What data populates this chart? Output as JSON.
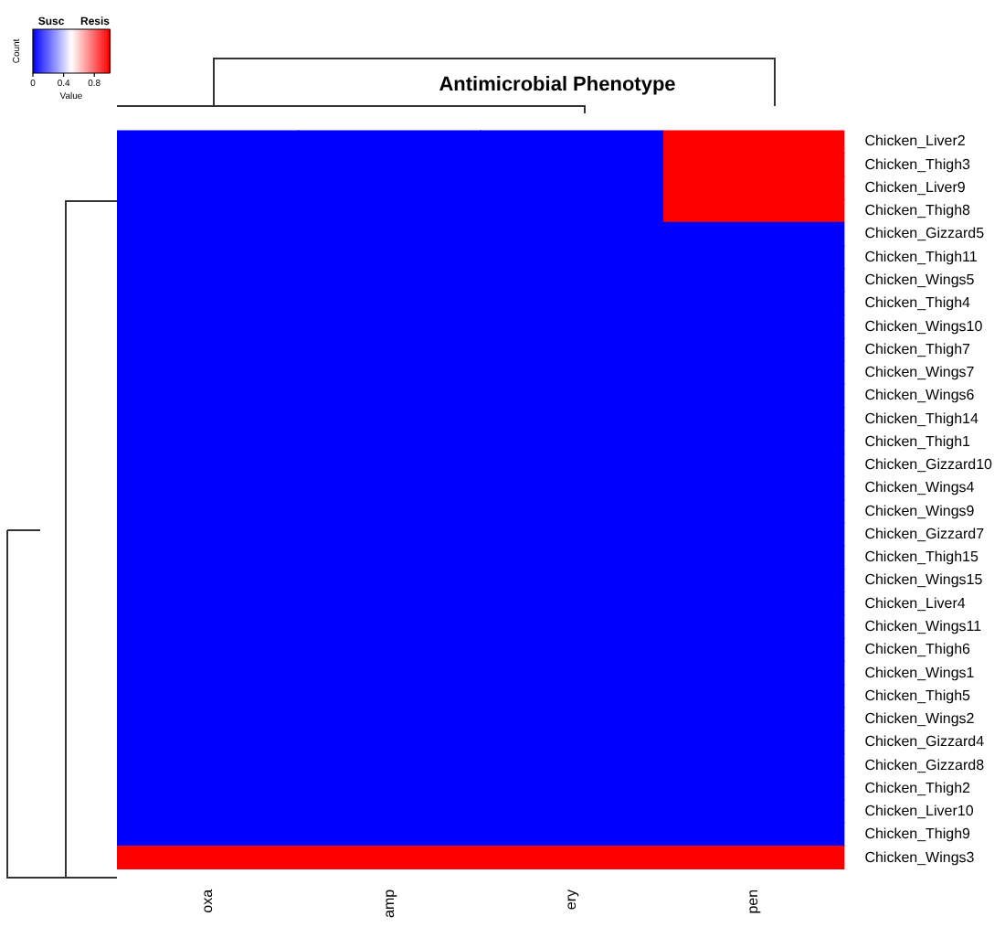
{
  "chart_data": {
    "type": "heatmap",
    "title": "Antimicrobial Phenotype",
    "clabel": "Value",
    "clim": [
      0,
      1
    ],
    "cticks": [
      0,
      0.4,
      0.8
    ],
    "annotations": [
      "Susc",
      "Resis",
      "Count"
    ],
    "categories": [
      "oxa",
      "amp",
      "ery",
      "pen"
    ],
    "y_categories": [
      "Chicken_Liver2",
      "Chicken_Thigh3",
      "Chicken_Liver9",
      "Chicken_Thigh8",
      "Chicken_Gizzard5",
      "Chicken_Thigh11",
      "Chicken_Wings5",
      "Chicken_Thigh4",
      "Chicken_Wings10",
      "Chicken_Thigh7",
      "Chicken_Wings7",
      "Chicken_Wings6",
      "Chicken_Thigh14",
      "Chicken_Thigh1",
      "Chicken_Gizzard10",
      "Chicken_Wings4",
      "Chicken_Wings9",
      "Chicken_Gizzard7",
      "Chicken_Thigh15",
      "Chicken_Wings15",
      "Chicken_Liver4",
      "Chicken_Wings11",
      "Chicken_Thigh6",
      "Chicken_Wings1",
      "Chicken_Thigh5",
      "Chicken_Wings2",
      "Chicken_Gizzard4",
      "Chicken_Gizzard8",
      "Chicken_Thigh2",
      "Chicken_Liver10",
      "Chicken_Thigh9",
      "Chicken_Wings3"
    ],
    "cells": [
      [
        0,
        0,
        0,
        1
      ],
      [
        0,
        0,
        0,
        1
      ],
      [
        0,
        0,
        0,
        1
      ],
      [
        0,
        0,
        0,
        1
      ],
      [
        0,
        0,
        0,
        0
      ],
      [
        0,
        0,
        0,
        0
      ],
      [
        0,
        0,
        0,
        0
      ],
      [
        0,
        0,
        0,
        0
      ],
      [
        0,
        0,
        0,
        0
      ],
      [
        0,
        0,
        0,
        0
      ],
      [
        0,
        0,
        0,
        0
      ],
      [
        0,
        0,
        0,
        0
      ],
      [
        0,
        0,
        0,
        0
      ],
      [
        0,
        0,
        0,
        0
      ],
      [
        0,
        0,
        0,
        0
      ],
      [
        0,
        0,
        0,
        0
      ],
      [
        0,
        0,
        0,
        0
      ],
      [
        0,
        0,
        0,
        0
      ],
      [
        0,
        0,
        0,
        0
      ],
      [
        0,
        0,
        0,
        0
      ],
      [
        0,
        0,
        0,
        0
      ],
      [
        0,
        0,
        0,
        0
      ],
      [
        0,
        0,
        0,
        0
      ],
      [
        0,
        0,
        0,
        0
      ],
      [
        0,
        0,
        0,
        0
      ],
      [
        0,
        0,
        0,
        0
      ],
      [
        0,
        0,
        0,
        0
      ],
      [
        0,
        0,
        0,
        0
      ],
      [
        0,
        0,
        0,
        0
      ],
      [
        0,
        0,
        0,
        0
      ],
      [
        0,
        0,
        0,
        0
      ],
      [
        1,
        1,
        1,
        1
      ]
    ]
  }
}
